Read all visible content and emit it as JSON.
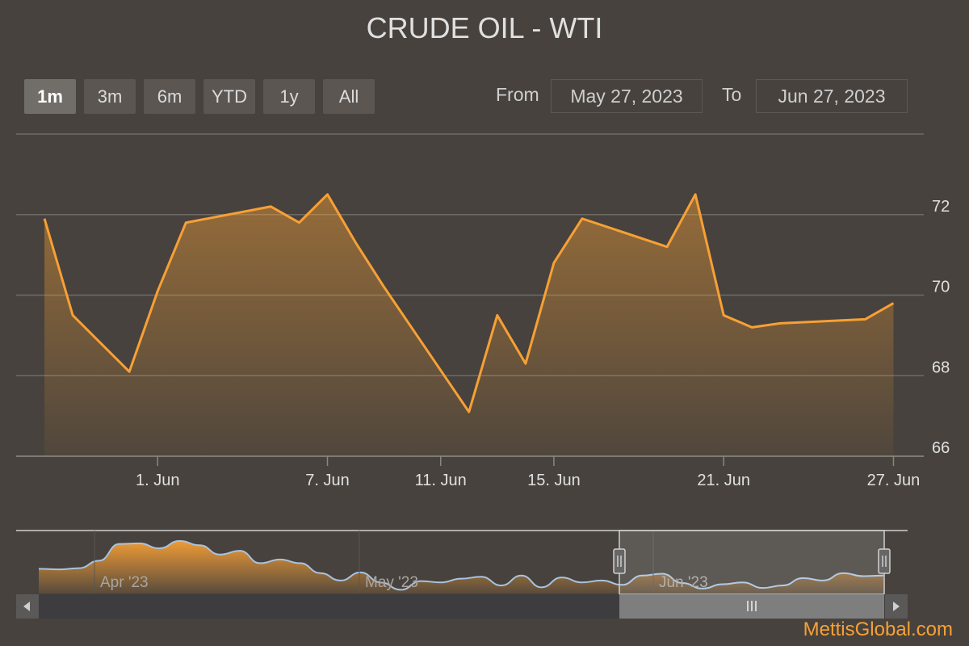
{
  "title": "CRUDE OIL - WTI",
  "range_buttons": [
    {
      "label": "1m",
      "active": true
    },
    {
      "label": "3m",
      "active": false
    },
    {
      "label": "6m",
      "active": false
    },
    {
      "label": "YTD",
      "active": false
    },
    {
      "label": "1y",
      "active": false
    },
    {
      "label": "All",
      "active": false
    }
  ],
  "range_inputs": {
    "from_label": "From",
    "from_value": "May 27, 2023",
    "to_label": "To",
    "to_value": "Jun 27, 2023"
  },
  "navigator": {
    "labels": [
      "Apr '23",
      "May '23",
      "Jun '23"
    ],
    "series_values": [
      70.5,
      70.4,
      70.6,
      71.8,
      74.5,
      74.6,
      73.8,
      75.0,
      74.3,
      72.8,
      73.4,
      71.4,
      72.0,
      71.4,
      69.8,
      68.6,
      69.9,
      68.3,
      67.1,
      68.5,
      68.3,
      68.9,
      69.2,
      67.8,
      69.4,
      67.5,
      69.1,
      68.3,
      68.6,
      67.9,
      69.4,
      69.7,
      68.2,
      67.3,
      68.0,
      68.3,
      67.4,
      67.8,
      69.0,
      68.6,
      69.8,
      69.3,
      69.4
    ]
  },
  "colors": {
    "background": "#47423d",
    "line": "#f7a035",
    "navigator_line": "#a9c3e1",
    "text": "#e0e0e0"
  },
  "brand": "MettisGlobal.com",
  "chart_data": {
    "type": "area",
    "title": "CRUDE OIL - WTI",
    "xlabel": "",
    "ylabel": "",
    "x": [
      "2023-05-28",
      "2023-05-29",
      "2023-05-31",
      "2023-06-01",
      "2023-06-02",
      "2023-06-05",
      "2023-06-06",
      "2023-06-07",
      "2023-06-08",
      "2023-06-09",
      "2023-06-12",
      "2023-06-13",
      "2023-06-14",
      "2023-06-15",
      "2023-06-16",
      "2023-06-19",
      "2023-06-20",
      "2023-06-21",
      "2023-06-22",
      "2023-06-23",
      "2023-06-26",
      "2023-06-27"
    ],
    "series": [
      {
        "values": [
          71.9,
          69.5,
          68.1,
          70.1,
          71.8,
          72.2,
          71.8,
          72.5,
          71.3,
          70.2,
          67.1,
          69.5,
          68.3,
          70.8,
          71.9,
          71.2,
          72.5,
          69.5,
          69.2,
          69.3,
          69.4,
          69.8
        ]
      }
    ],
    "x_tick_labels": [
      "1. Jun",
      "7. Jun",
      "11. Jun",
      "15. Jun",
      "21. Jun",
      "27. Jun"
    ],
    "y_tick_labels": [
      "66",
      "68",
      "70",
      "72"
    ],
    "ylim": [
      66,
      74
    ],
    "grid": true,
    "legend": "none"
  }
}
